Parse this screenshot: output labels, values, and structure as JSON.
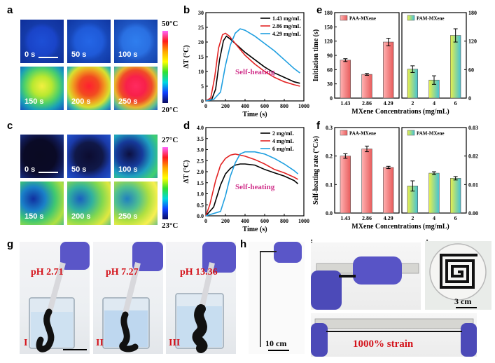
{
  "panels": {
    "a": "a",
    "b": "b",
    "c": "c",
    "d": "d",
    "e": "e",
    "f": "f",
    "g": "g",
    "h": "h",
    "i": "i",
    "j": "j"
  },
  "panel_a": {
    "times": [
      "0 s",
      "50 s",
      "100 s",
      "150 s",
      "200 s",
      "250 s"
    ],
    "colorbar_max": "50°C",
    "colorbar_min": "20°C"
  },
  "panel_c": {
    "times": [
      "0 s",
      "50 s",
      "100 s",
      "150 s",
      "200 s",
      "250 s"
    ],
    "colorbar_max": "27°C",
    "colorbar_min": "23°C"
  },
  "panel_g": {
    "labels": [
      "pH 2.71",
      "pH 7.27",
      "pH 13.36"
    ],
    "roman": [
      "I",
      "II",
      "III"
    ]
  },
  "panel_h": {
    "scale": "10 cm"
  },
  "panel_i": {
    "strain": "1000% strain"
  },
  "panel_j": {
    "scale": "3 cm"
  },
  "chart_data": [
    {
      "id": "b",
      "type": "line",
      "xlabel": "Time (s)",
      "ylabel": "ΔT (°C)",
      "xlim": [
        0,
        1000
      ],
      "ylim": [
        0,
        30
      ],
      "xticks": [
        0,
        200,
        400,
        600,
        800,
        1000
      ],
      "yticks": [
        0,
        5,
        10,
        15,
        20,
        25,
        30
      ],
      "annotation": "Self-heating",
      "series": [
        {
          "name": "1.43 mg/mL",
          "color": "#000000",
          "x": [
            0,
            60,
            100,
            140,
            180,
            210,
            250,
            300,
            400,
            500,
            600,
            700,
            800,
            900,
            960
          ],
          "y": [
            0,
            0.5,
            4,
            14,
            20.5,
            22,
            21,
            19.5,
            16.5,
            14,
            11.5,
            9.5,
            8,
            6.5,
            6
          ]
        },
        {
          "name": "2.86 mg/mL",
          "color": "#e32424",
          "x": [
            0,
            50,
            90,
            130,
            170,
            200,
            240,
            300,
            400,
            500,
            600,
            700,
            800,
            900,
            960
          ],
          "y": [
            0,
            1,
            8,
            18,
            22.5,
            23,
            22,
            19.5,
            15.5,
            12.5,
            10,
            8,
            6.5,
            5.5,
            5
          ]
        },
        {
          "name": "4.29 mg/mL",
          "color": "#1f9fe0",
          "x": [
            0,
            80,
            150,
            200,
            250,
            300,
            350,
            400,
            500,
            600,
            700,
            800,
            900,
            960
          ],
          "y": [
            0,
            0.5,
            3,
            12,
            19,
            23,
            24.5,
            24,
            22,
            19.5,
            17,
            14,
            11,
            9.5
          ]
        }
      ]
    },
    {
      "id": "d",
      "type": "line",
      "xlabel": "Time (s)",
      "ylabel": "ΔT (°C)",
      "xlim": [
        0,
        1000
      ],
      "ylim": [
        0,
        4
      ],
      "xticks": [
        0,
        200,
        400,
        600,
        800,
        1000
      ],
      "yticks": [
        0.0,
        0.5,
        1.0,
        1.5,
        2.0,
        2.5,
        3.0,
        3.5,
        4.0
      ],
      "annotation": "Self-heating",
      "series": [
        {
          "name": "2 mg/mL",
          "color": "#000000",
          "x": [
            0,
            80,
            150,
            200,
            250,
            300,
            350,
            400,
            500,
            600,
            700,
            800,
            900,
            940
          ],
          "y": [
            0,
            0.4,
            1.4,
            1.9,
            2.15,
            2.3,
            2.35,
            2.35,
            2.3,
            2.1,
            1.95,
            1.8,
            1.6,
            1.45
          ]
        },
        {
          "name": "4 mg/mL",
          "color": "#e32424",
          "x": [
            0,
            40,
            100,
            150,
            200,
            250,
            300,
            400,
            500,
            600,
            700,
            800,
            900,
            940
          ],
          "y": [
            0,
            0.5,
            1.6,
            2.3,
            2.6,
            2.75,
            2.8,
            2.7,
            2.55,
            2.35,
            2.1,
            1.95,
            1.75,
            1.65
          ]
        },
        {
          "name": "6 mg/mL",
          "color": "#1f9fe0",
          "x": [
            0,
            150,
            200,
            250,
            300,
            350,
            400,
            500,
            600,
            700,
            800,
            900,
            940
          ],
          "y": [
            0,
            0.2,
            0.9,
            1.8,
            2.4,
            2.8,
            2.9,
            2.9,
            2.8,
            2.6,
            2.35,
            2.05,
            1.9
          ]
        }
      ]
    },
    {
      "id": "e",
      "type": "bar",
      "xlabel": "MXene Concentrations (mg/mL)",
      "ylabel": "Initiation time (s)",
      "left": {
        "legend": "PAA-MXene",
        "categories": [
          "1.43",
          "2.86",
          "4.29"
        ],
        "values": [
          80,
          50,
          118
        ],
        "errors": [
          3,
          2,
          8
        ],
        "ylim": [
          0,
          180
        ],
        "yticks": [
          0,
          30,
          60,
          90,
          120,
          150,
          180
        ]
      },
      "right": {
        "legend": "PAM-MXene",
        "categories": [
          "2",
          "4",
          "6"
        ],
        "values": [
          61,
          38,
          132
        ],
        "errors": [
          7,
          9,
          14
        ],
        "ylim": [
          0,
          180
        ],
        "yticks": [
          0,
          60,
          120,
          180
        ]
      }
    },
    {
      "id": "f",
      "type": "bar",
      "xlabel": "MXene Concentrations (mg/mL)",
      "ylabel": "Self-heating rate (°C/s)",
      "left": {
        "legend": "PAA-MXene",
        "categories": [
          "1.43",
          "2.86",
          "4.29"
        ],
        "values": [
          0.2,
          0.225,
          0.16
        ],
        "errors": [
          0.008,
          0.01,
          0.004
        ],
        "ylim": [
          0,
          0.3
        ],
        "yticks": [
          0.0,
          0.1,
          0.2,
          0.3
        ],
        "yfmt": 1
      },
      "right": {
        "legend": "PAM-MXene",
        "categories": [
          "2",
          "4",
          "6"
        ],
        "values": [
          0.0095,
          0.014,
          0.0122
        ],
        "errors": [
          0.0018,
          0.0005,
          0.0006
        ],
        "ylim": [
          0,
          0.03
        ],
        "yticks": [
          0.0,
          0.01,
          0.02,
          0.03
        ],
        "yfmt": 2
      }
    }
  ]
}
